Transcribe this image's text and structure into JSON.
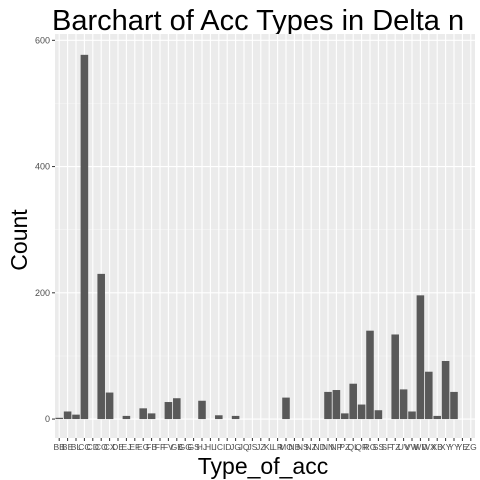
{
  "chart_data": {
    "type": "bar",
    "title": "Barchart of Acc Types in Delta n",
    "xlabel": "Type_of_acc",
    "ylabel": "Count",
    "ylim": [
      -30,
      610
    ],
    "yticks": [
      0,
      200,
      400,
      600
    ],
    "grid": true,
    "bar_color": "#595959",
    "panel_color": "#ebebeb",
    "categories": [
      "BB",
      "BE",
      "BL",
      "CC",
      "CD",
      "CO",
      "CX",
      "DE",
      "EJ",
      "EF",
      "EG",
      "FB",
      "FF",
      "FV",
      "GB",
      "GG",
      "GS",
      "HJ",
      "HL",
      "IC",
      "ID",
      "JG",
      "JQ",
      "JS",
      "JZ",
      "KL",
      "LR",
      "MO",
      "NB",
      "NS",
      "NZ",
      "ND",
      "NN",
      "NP",
      "PZ",
      "QL",
      "QR",
      "RG",
      "SS",
      "SF",
      "TZ",
      "UV",
      "VW",
      "WD",
      "WX",
      "XB",
      "XY",
      "YY",
      "YE",
      "ZG"
    ],
    "tick_labels": [
      "BB",
      "BE",
      "BL",
      "CC",
      "CD",
      "CO",
      "CX",
      "DE",
      "EJ",
      "EF",
      "EG",
      "FB",
      "FF",
      "FV",
      "GB",
      "GG",
      "GS",
      "HJ",
      "HL",
      "IC",
      "ID",
      "JG",
      "JQ",
      "JS",
      "JZ",
      "KL",
      "LR",
      "MO",
      "NB",
      "NS",
      "NZ",
      "ND",
      "NN",
      "NP",
      "PZ",
      "QL",
      "QR",
      "RG",
      "SS",
      "SF",
      "TZ",
      "UV",
      "VW",
      "WD",
      "WX",
      "XB",
      "XY",
      "YY",
      "YE",
      "ZG"
    ],
    "values": [
      2,
      12,
      7,
      577,
      0,
      230,
      42,
      0,
      5,
      0,
      17,
      9,
      0,
      27,
      33,
      0,
      0,
      29,
      0,
      6,
      0,
      5,
      0,
      0,
      0,
      0,
      0,
      34,
      0,
      0,
      0,
      0,
      43,
      46,
      9,
      56,
      23,
      140,
      14,
      0,
      134,
      47,
      12,
      196,
      75,
      5,
      92,
      43,
      0,
      0
    ]
  }
}
